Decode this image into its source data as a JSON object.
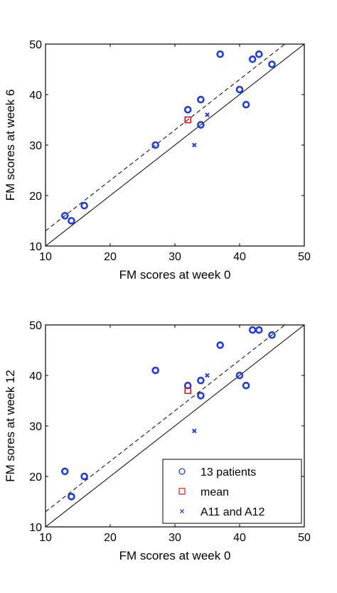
{
  "colors": {
    "patients": "#1f3fd8",
    "mean": "#e01b1b",
    "a11a12": "#1f3fd8",
    "axis": "#000000"
  },
  "chart_data": [
    {
      "type": "scatter",
      "xlabel": "FM scores at week 0",
      "ylabel": "FM scores at week 6",
      "xlim": [
        10,
        50
      ],
      "ylim": [
        10,
        50
      ],
      "xticks": [
        "10",
        "20",
        "30",
        "40",
        "50"
      ],
      "yticks": [
        "10",
        "20",
        "30",
        "40",
        "50"
      ],
      "grid": false,
      "identity_line": {
        "slope": 1,
        "intercept": 0,
        "style": "solid"
      },
      "shifted_line": {
        "slope": 1,
        "intercept": 3,
        "style": "dashed"
      },
      "series": [
        {
          "marker": "circle",
          "points": [
            [
              13,
              16
            ],
            [
              14,
              15
            ],
            [
              16,
              18
            ],
            [
              27,
              30
            ],
            [
              32,
              37
            ],
            [
              34,
              39
            ],
            [
              34,
              34
            ],
            [
              37,
              48
            ],
            [
              40,
              41
            ],
            [
              41,
              38
            ],
            [
              42,
              47
            ],
            [
              43,
              48
            ],
            [
              45,
              46
            ]
          ]
        },
        {
          "marker": "square",
          "points": [
            [
              32,
              35
            ]
          ]
        },
        {
          "marker": "x",
          "points": [
            [
              33,
              30
            ],
            [
              35,
              36
            ]
          ]
        }
      ]
    },
    {
      "type": "scatter",
      "xlabel": "FM scores at week 0",
      "ylabel": "FM sores at week 12",
      "xlim": [
        10,
        50
      ],
      "ylim": [
        10,
        50
      ],
      "xticks": [
        "10",
        "20",
        "30",
        "40",
        "50"
      ],
      "yticks": [
        "10",
        "20",
        "30",
        "40",
        "50"
      ],
      "grid": false,
      "identity_line": {
        "slope": 1,
        "intercept": 0,
        "style": "solid"
      },
      "shifted_line": {
        "slope": 1,
        "intercept": 3,
        "style": "dashed"
      },
      "legend": {
        "placement": "bottom-right",
        "entries": [
          {
            "marker": "circle",
            "label": "13 patients"
          },
          {
            "marker": "square",
            "label": "mean"
          },
          {
            "marker": "x",
            "label": "A11 and A12"
          }
        ]
      },
      "series": [
        {
          "marker": "circle",
          "points": [
            [
              13,
              21
            ],
            [
              14,
              16
            ],
            [
              16,
              20
            ],
            [
              27,
              41
            ],
            [
              32,
              38
            ],
            [
              34,
              39
            ],
            [
              34,
              36
            ],
            [
              37,
              46
            ],
            [
              40,
              40
            ],
            [
              41,
              38
            ],
            [
              42,
              49
            ],
            [
              43,
              49
            ],
            [
              45,
              48
            ]
          ]
        },
        {
          "marker": "square",
          "points": [
            [
              32,
              37
            ]
          ]
        },
        {
          "marker": "x",
          "points": [
            [
              33,
              29
            ],
            [
              35,
              40
            ]
          ]
        }
      ]
    }
  ]
}
